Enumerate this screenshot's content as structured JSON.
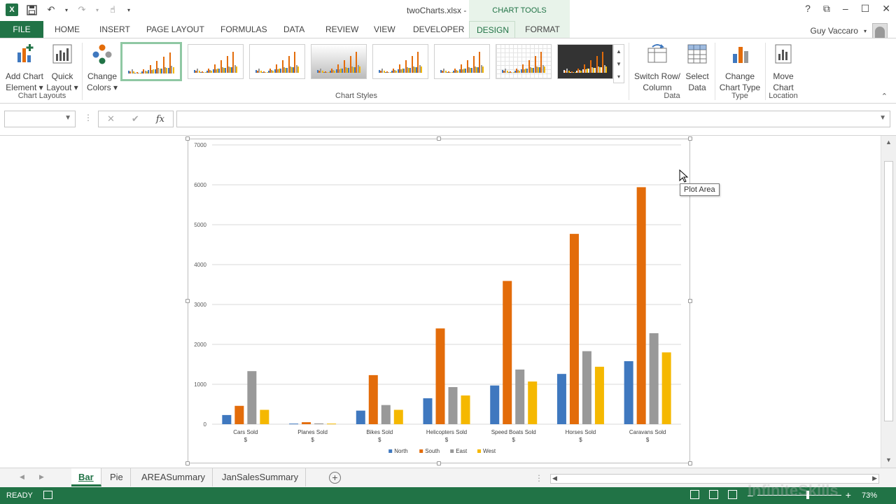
{
  "window": {
    "title": "twoCharts.xlsx - Excel",
    "contextual_header": "CHART TOOLS",
    "controls": [
      "?",
      "⧉",
      "–",
      "☐",
      "✕"
    ]
  },
  "tabs": [
    "FILE",
    "HOME",
    "INSERT",
    "PAGE LAYOUT",
    "FORMULAS",
    "DATA",
    "REVIEW",
    "VIEW",
    "DEVELOPER",
    "DESIGN",
    "FORMAT"
  ],
  "active_tab": "DESIGN",
  "user": {
    "name": "Guy Vaccaro"
  },
  "ribbon": {
    "add_chart_element": [
      "Add Chart",
      "Element ▾"
    ],
    "quick_layout": [
      "Quick",
      "Layout ▾"
    ],
    "change_colors": [
      "Change",
      "Colors ▾"
    ],
    "group_chart_layouts": "Chart Layouts",
    "group_chart_styles": "Chart Styles",
    "switch_row_column": [
      "Switch Row/",
      "Column"
    ],
    "select_data": [
      "Select",
      "Data"
    ],
    "group_data": "Data",
    "change_chart_type": [
      "Change",
      "Chart Type"
    ],
    "group_type": "Type",
    "move_chart": [
      "Move",
      "Chart"
    ],
    "group_location": "Location"
  },
  "formula_bar": {
    "name_box": "",
    "fx": "fx",
    "cancel": "✕",
    "enter": "✔",
    "value": ""
  },
  "tooltip": "Plot Area",
  "chart_data": {
    "type": "bar",
    "categories": [
      [
        "Cars Sold",
        "$"
      ],
      [
        "Planes Sold",
        "$"
      ],
      [
        "Bikes Sold",
        "$"
      ],
      [
        "Helicopters Sold",
        "$"
      ],
      [
        "Speed Boats Sold",
        "$"
      ],
      [
        "Horses Sold",
        "$"
      ],
      [
        "Caravans Sold",
        "$"
      ]
    ],
    "series": [
      {
        "name": "North",
        "color": "#3f78bf",
        "values": [
          230,
          15,
          340,
          650,
          970,
          1260,
          1580
        ]
      },
      {
        "name": "South",
        "color": "#e36c0a",
        "values": [
          460,
          50,
          1230,
          2400,
          3590,
          4770,
          5940
        ]
      },
      {
        "name": "East",
        "color": "#999999",
        "values": [
          1330,
          20,
          480,
          930,
          1370,
          1830,
          2280
        ]
      },
      {
        "name": "West",
        "color": "#f5b800",
        "values": [
          360,
          15,
          360,
          720,
          1070,
          1440,
          1800
        ]
      }
    ],
    "ylim": [
      0,
      7000
    ],
    "yticks": [
      0,
      1000,
      2000,
      3000,
      4000,
      5000,
      6000,
      7000
    ],
    "grid": true,
    "legend_position": "bottom"
  },
  "sheet_tabs": [
    "Bar",
    "Pie",
    "AREASummary",
    "JanSalesSummary"
  ],
  "active_sheet": "Bar",
  "status": {
    "ready": "READY",
    "zoom": "73%",
    "zoom_minus": "–",
    "zoom_plus": "+"
  },
  "watermark": "InfiniteSkills"
}
